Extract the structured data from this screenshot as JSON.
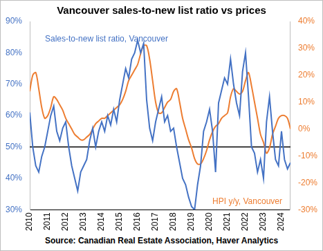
{
  "chart_data": {
    "type": "line",
    "title": "Vancouver sales-to-new list ratio vs prices",
    "source": "Source: Canadian Real Estate Association, Haver Analytics",
    "categories": [
      "2010",
      null,
      null,
      null,
      null,
      null,
      "2011",
      null,
      null,
      null,
      null,
      null,
      "2012",
      null,
      null,
      null,
      null,
      null,
      "2013",
      null,
      null,
      null,
      null,
      null,
      "2014",
      null,
      null,
      null,
      null,
      null,
      "2015",
      null,
      null,
      null,
      null,
      null,
      "2016",
      null,
      null,
      null,
      null,
      null,
      "2017",
      null,
      null,
      null,
      null,
      null,
      "2018",
      null,
      null,
      null,
      null,
      null,
      "2019",
      null,
      null,
      null,
      null,
      null,
      "2020",
      null,
      null,
      null,
      null,
      null,
      "2021",
      null,
      null,
      null,
      null,
      null,
      "2022",
      null,
      null,
      null,
      null,
      null,
      "2023",
      null,
      null,
      null,
      null,
      null,
      "2024",
      null,
      null,
      null
    ],
    "series": [
      {
        "name": "Sales-to-new list ratio, Vancouver",
        "color": "#4472c4",
        "axis": "y",
        "values": [
          61,
          50,
          44,
          42,
          47,
          50,
          55,
          60,
          63,
          55,
          52,
          56,
          58,
          50,
          44,
          40,
          36,
          42,
          44,
          46,
          52,
          56,
          50,
          55,
          58,
          55,
          60,
          57,
          62,
          58,
          65,
          70,
          75,
          72,
          78,
          80,
          84,
          80,
          83,
          65,
          56,
          52,
          58,
          62,
          66,
          58,
          60,
          55,
          56,
          50,
          45,
          40,
          38,
          34,
          31,
          30,
          38,
          44,
          55,
          58,
          62,
          55,
          42,
          64,
          68,
          72,
          70,
          78,
          70,
          64,
          60,
          74,
          80,
          66,
          50,
          48,
          42,
          46,
          40,
          58,
          66,
          55,
          46,
          44,
          55,
          46,
          43,
          45
        ]
      },
      {
        "name": "HPI y/y, Vancouver",
        "color": "#ed7d31",
        "axis": "y2",
        "values": [
          14,
          20,
          21,
          15,
          8,
          4,
          5,
          8,
          12,
          11,
          9,
          7,
          4,
          2,
          0,
          -2,
          -3,
          -4,
          -4,
          -3,
          -2,
          0,
          2,
          3,
          4,
          4,
          5,
          6,
          7,
          8,
          9,
          11,
          14,
          18,
          20,
          22,
          24,
          28,
          31,
          31,
          26,
          18,
          10,
          6,
          6,
          8,
          10,
          11,
          14,
          15,
          10,
          4,
          0,
          -4,
          -7,
          -11,
          -13,
          -13,
          -11,
          -8,
          -4,
          -1,
          1,
          2,
          4,
          5,
          6,
          12,
          15,
          14,
          13,
          14,
          18,
          21,
          16,
          10,
          4,
          -2,
          -5,
          -9,
          -7,
          -2,
          1,
          4,
          5,
          5,
          4,
          0
        ]
      }
    ],
    "ylim": [
      30,
      90
    ],
    "yticks": [
      {
        "value": 30,
        "label": "30%"
      },
      {
        "value": 40,
        "label": "40%"
      },
      {
        "value": 50,
        "label": "50%"
      },
      {
        "value": 60,
        "label": "60%"
      },
      {
        "value": 70,
        "label": "70%"
      },
      {
        "value": 80,
        "label": "80%"
      },
      {
        "value": 90,
        "label": "90%"
      }
    ],
    "y2lim": [
      -30,
      40
    ],
    "y2ticks": [
      {
        "value": -30,
        "label": "-30%"
      },
      {
        "value": -20,
        "label": "-20%"
      },
      {
        "value": -10,
        "label": "-10%"
      },
      {
        "value": 0,
        "label": "0%"
      },
      {
        "value": 10,
        "label": "10%"
      },
      {
        "value": 20,
        "label": "20%"
      },
      {
        "value": 30,
        "label": "30%"
      },
      {
        "value": 40,
        "label": "40%"
      }
    ],
    "reference_line": 50,
    "grid": false
  }
}
